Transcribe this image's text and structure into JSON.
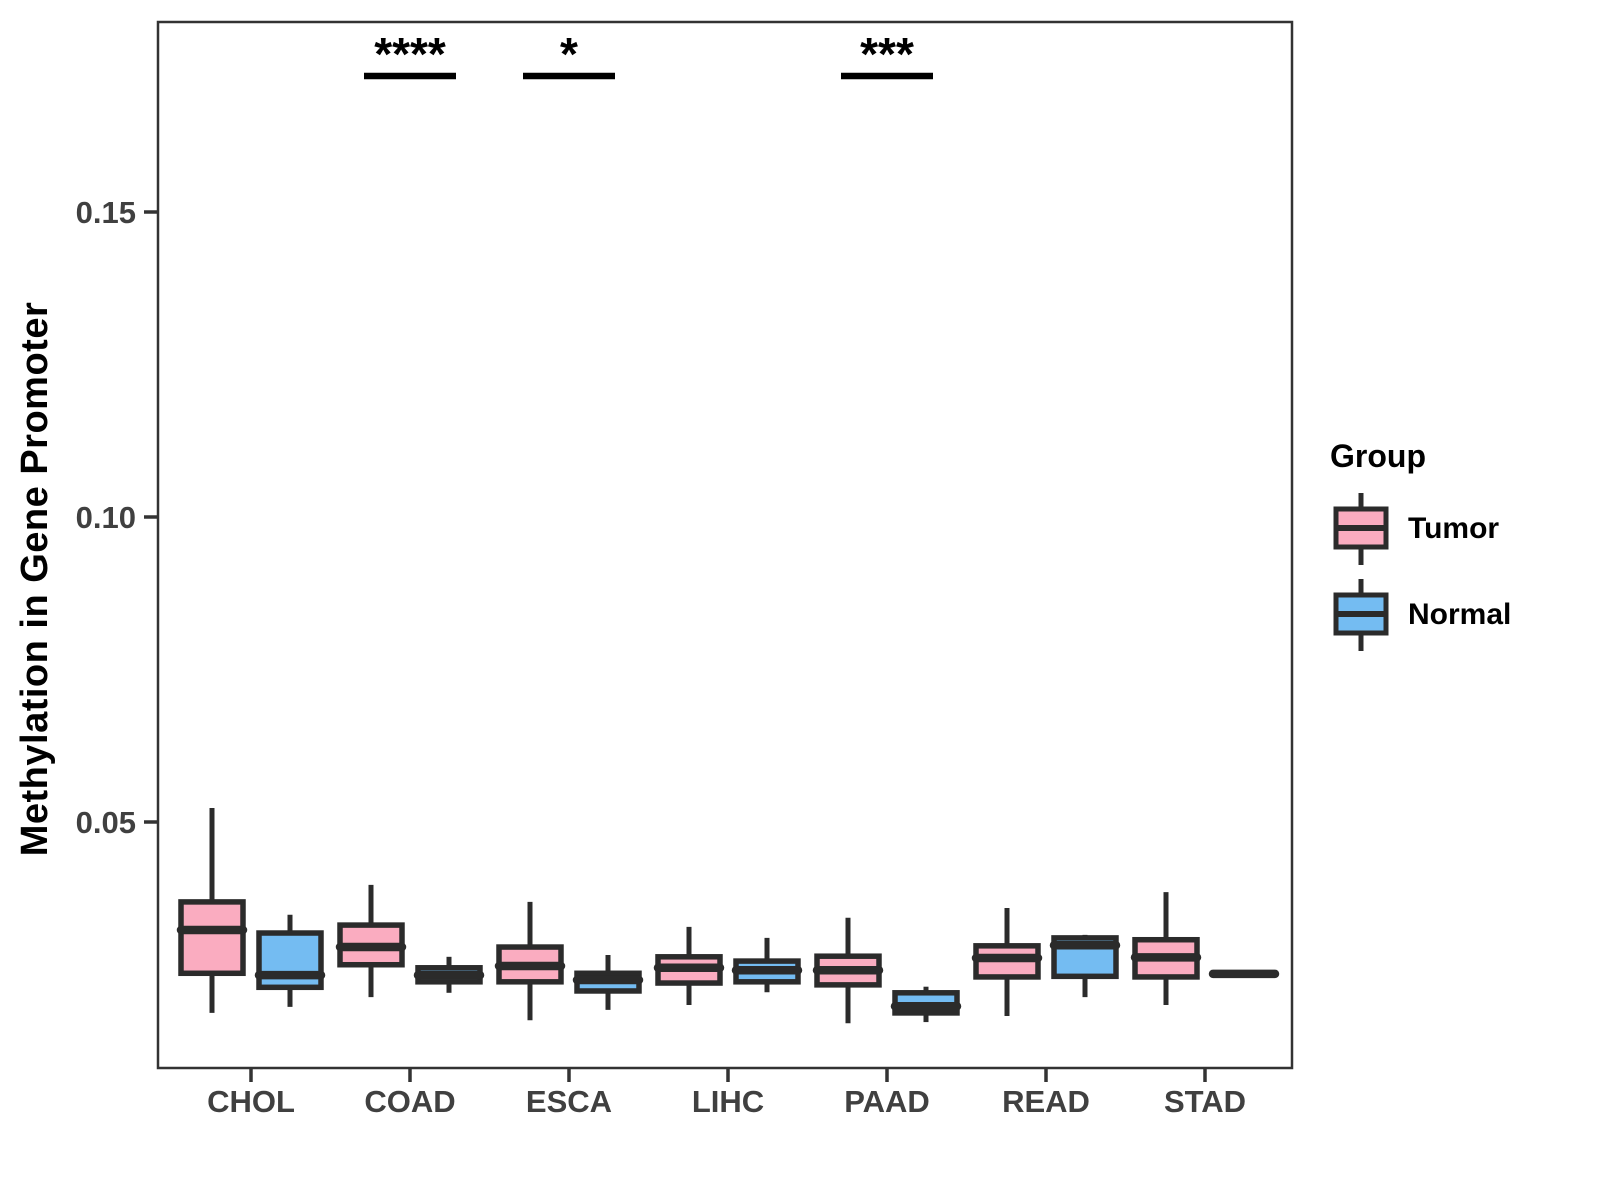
{
  "figure": {
    "background": "#ffffff"
  },
  "legend": {
    "title": "Group",
    "items": [
      {
        "label": "Tumor",
        "color": "#FAACC0"
      },
      {
        "label": "Normal",
        "color": "#74BCF2"
      }
    ]
  },
  "chart_data": {
    "type": "grouped_boxplot",
    "title": "",
    "xlabel": "",
    "ylabel": "Methylation in Gene Promoter",
    "categories": [
      "CHOL",
      "COAD",
      "ESCA",
      "LIHC",
      "PAAD",
      "READ",
      "STAD"
    ],
    "yticks": [
      {
        "value": 0.05,
        "label": "0.05"
      },
      {
        "value": 0.1,
        "label": "0.10"
      },
      {
        "value": 0.15,
        "label": "0.15"
      }
    ],
    "ylim": [
      0.0095,
      0.181
    ],
    "grid": false,
    "legend_position": "right",
    "outline_color": "#2B2B2B",
    "axis_text_color": "#404040",
    "series": [
      {
        "name": "Tumor",
        "color": "#FAACC0",
        "boxes": [
          {
            "low": 0.0187,
            "q1": 0.0252,
            "median": 0.0323,
            "q3": 0.0369,
            "high": 0.0523
          },
          {
            "low": 0.0213,
            "q1": 0.0266,
            "median": 0.0295,
            "q3": 0.0331,
            "high": 0.0397
          },
          {
            "low": 0.0175,
            "q1": 0.0238,
            "median": 0.0264,
            "q3": 0.0295,
            "high": 0.0369
          },
          {
            "low": 0.02,
            "q1": 0.0236,
            "median": 0.0261,
            "q3": 0.0279,
            "high": 0.0328
          },
          {
            "low": 0.017,
            "q1": 0.0233,
            "median": 0.0257,
            "q3": 0.028,
            "high": 0.0343
          },
          {
            "low": 0.0182,
            "q1": 0.0246,
            "median": 0.0277,
            "q3": 0.0297,
            "high": 0.0359
          },
          {
            "low": 0.02,
            "q1": 0.0246,
            "median": 0.0278,
            "q3": 0.0307,
            "high": 0.0385
          }
        ]
      },
      {
        "name": "Normal",
        "color": "#74BCF2",
        "boxes": [
          {
            "low": 0.0197,
            "q1": 0.0229,
            "median": 0.0249,
            "q3": 0.0318,
            "high": 0.0348
          },
          {
            "low": 0.022,
            "q1": 0.0238,
            "median": 0.0249,
            "q3": 0.0261,
            "high": 0.0279
          },
          {
            "low": 0.0192,
            "q1": 0.0223,
            "median": 0.0241,
            "q3": 0.0252,
            "high": 0.0282
          },
          {
            "low": 0.0221,
            "q1": 0.0238,
            "median": 0.0257,
            "q3": 0.0272,
            "high": 0.031
          },
          {
            "low": 0.0172,
            "q1": 0.0187,
            "median": 0.0198,
            "q3": 0.022,
            "high": 0.023
          },
          {
            "low": 0.0213,
            "q1": 0.0247,
            "median": 0.0298,
            "q3": 0.031,
            "high": 0.0315
          },
          {
            "low": 0.0251,
            "q1": 0.0251,
            "median": 0.0251,
            "q3": 0.0251,
            "high": 0.0251
          }
        ]
      }
    ],
    "annotations": [
      {
        "category": "COAD",
        "label": "****"
      },
      {
        "category": "ESCA",
        "label": "*"
      },
      {
        "category": "PAAD",
        "label": "***"
      }
    ]
  }
}
